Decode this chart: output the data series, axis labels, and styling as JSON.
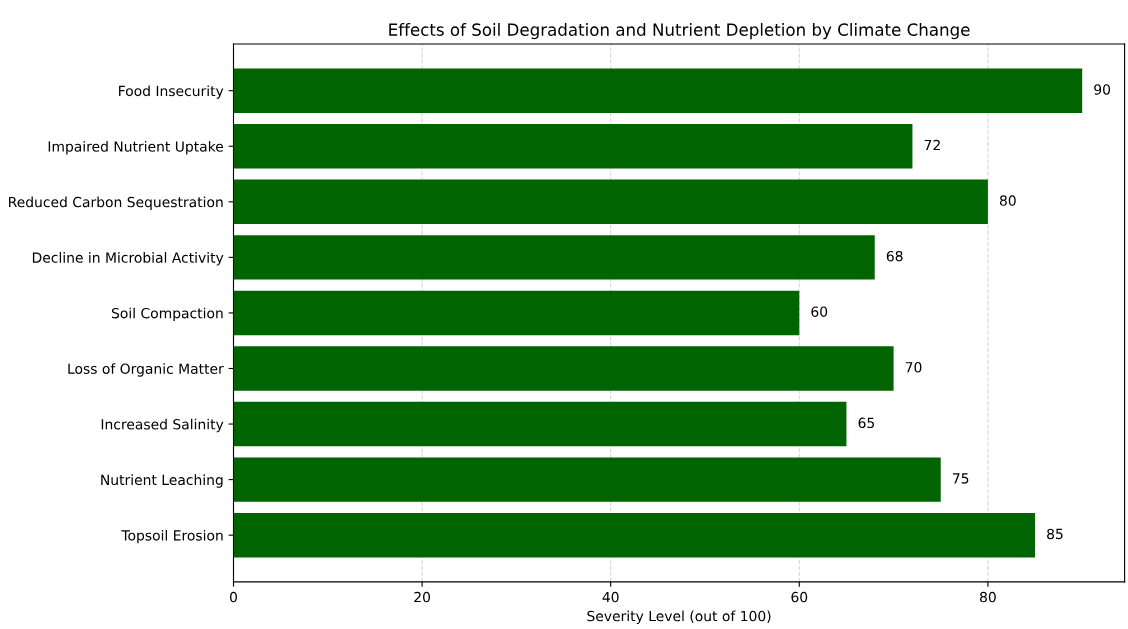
{
  "chart_data": {
    "type": "bar",
    "orientation": "horizontal",
    "title": "Effects of Soil Degradation and Nutrient Depletion by Climate Change",
    "xlabel": "Severity Level (out of 100)",
    "categories": [
      "Food Insecurity",
      "Impaired Nutrient Uptake",
      "Reduced Carbon Sequestration",
      "Decline in Microbial Activity",
      "Soil Compaction",
      "Loss of Organic Matter",
      "Increased Salinity",
      "Nutrient Leaching",
      "Topsoil Erosion"
    ],
    "values": [
      90,
      72,
      80,
      68,
      60,
      70,
      65,
      75,
      85
    ],
    "color": "#006400",
    "xlim": [
      0,
      94.5
    ],
    "xticks": [
      0,
      20,
      40,
      60,
      80
    ],
    "grid": "x",
    "data_labels": true
  }
}
